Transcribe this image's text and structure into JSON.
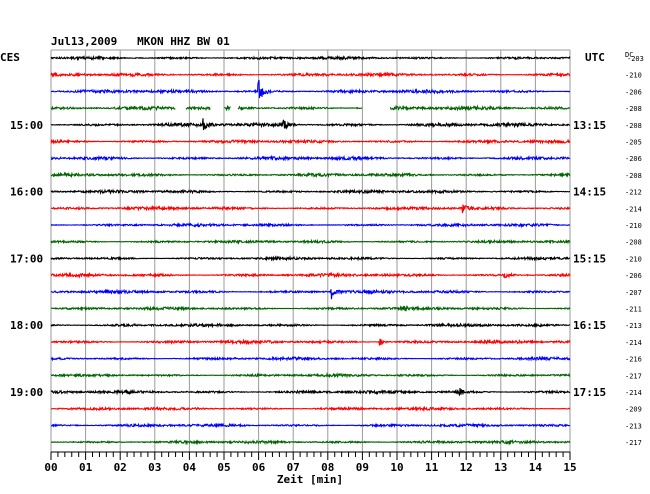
{
  "chart_data": {
    "type": "line",
    "title": "Jul13,2009   MKON HHZ BW 01",
    "left_timezone": "CES",
    "right_timezone": "UTC",
    "right_column_header": "DC",
    "xlabel": "Zeit [min]",
    "x_ticks": [
      "00",
      "01",
      "02",
      "03",
      "04",
      "05",
      "06",
      "07",
      "08",
      "09",
      "10",
      "11",
      "12",
      "13",
      "14",
      "15"
    ],
    "xlim": [
      0,
      15
    ],
    "grid": true,
    "series_colors": [
      "#000000",
      "#ff0000",
      "#0000ff",
      "#006400"
    ],
    "left_hour_labels": [
      {
        "row": 4,
        "text": "15:00"
      },
      {
        "row": 8,
        "text": "16:00"
      },
      {
        "row": 12,
        "text": "17:00"
      },
      {
        "row": 16,
        "text": "18:00"
      },
      {
        "row": 20,
        "text": "19:00"
      }
    ],
    "right_hour_labels": [
      {
        "row": 4,
        "text": "13:15"
      },
      {
        "row": 8,
        "text": "14:15"
      },
      {
        "row": 12,
        "text": "15:15"
      },
      {
        "row": 16,
        "text": "16:15"
      },
      {
        "row": 20,
        "text": "17:15"
      }
    ],
    "dc_offsets": [
      -203,
      -210,
      -206,
      -208,
      -208,
      -205,
      -206,
      -208,
      -212,
      -214,
      -210,
      -208,
      -210,
      -206,
      -207,
      -211,
      -213,
      -214,
      -216,
      -217,
      -214,
      -209,
      -213,
      -217
    ],
    "traces": [
      {
        "color": "#000000",
        "amp": 0.9,
        "events": []
      },
      {
        "color": "#ff0000",
        "amp": 1.0,
        "events": []
      },
      {
        "color": "#0000ff",
        "amp": 1.1,
        "events": [
          {
            "t": 6.0,
            "amp": 8.0
          }
        ]
      },
      {
        "color": "#006400",
        "amp": 1.2,
        "gaps": [
          [
            3.6,
            3.9
          ],
          [
            4.6,
            5.0
          ],
          [
            5.2,
            5.4
          ],
          [
            9.0,
            9.8
          ]
        ],
        "events": []
      },
      {
        "color": "#000000",
        "amp": 1.2,
        "events": [
          {
            "t": 4.4,
            "amp": 3.5
          },
          {
            "t": 6.7,
            "amp": 3.0
          }
        ]
      },
      {
        "color": "#ff0000",
        "amp": 1.0,
        "events": []
      },
      {
        "color": "#0000ff",
        "amp": 1.1,
        "events": []
      },
      {
        "color": "#006400",
        "amp": 1.0,
        "events": []
      },
      {
        "color": "#000000",
        "amp": 1.0,
        "events": []
      },
      {
        "color": "#ff0000",
        "amp": 1.0,
        "events": [
          {
            "t": 11.9,
            "amp": 2.5
          }
        ]
      },
      {
        "color": "#0000ff",
        "amp": 0.9,
        "events": []
      },
      {
        "color": "#006400",
        "amp": 0.9,
        "events": []
      },
      {
        "color": "#000000",
        "amp": 0.9,
        "events": []
      },
      {
        "color": "#ff0000",
        "amp": 1.0,
        "events": [
          {
            "t": 13.1,
            "amp": 2.0
          }
        ]
      },
      {
        "color": "#0000ff",
        "amp": 1.0,
        "events": [
          {
            "t": 8.1,
            "amp": 4.5
          }
        ]
      },
      {
        "color": "#006400",
        "amp": 0.9,
        "events": [
          {
            "t": 10.2,
            "amp": 2.0
          }
        ]
      },
      {
        "color": "#000000",
        "amp": 0.9,
        "events": []
      },
      {
        "color": "#ff0000",
        "amp": 1.0,
        "events": [
          {
            "t": 9.5,
            "amp": 2.5
          }
        ]
      },
      {
        "color": "#0000ff",
        "amp": 0.9,
        "events": []
      },
      {
        "color": "#006400",
        "amp": 0.9,
        "events": []
      },
      {
        "color": "#000000",
        "amp": 1.0,
        "events": [
          {
            "t": 11.8,
            "amp": 2.5
          }
        ]
      },
      {
        "color": "#ff0000",
        "amp": 0.9,
        "events": []
      },
      {
        "color": "#0000ff",
        "amp": 0.9,
        "events": []
      },
      {
        "color": "#006400",
        "amp": 0.9,
        "events": []
      }
    ]
  }
}
